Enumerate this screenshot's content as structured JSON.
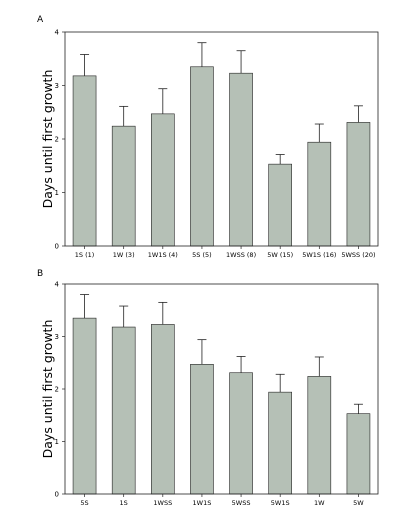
{
  "chart_data": [
    {
      "panel_label": "A",
      "type": "bar",
      "categories": [
        "1S (1)",
        "1W (3)",
        "1W1S (4)",
        "5S (5)",
        "1WSS (8)",
        "5W (15)",
        "5W1S (16)",
        "5WSS (20)"
      ],
      "values": [
        3.18,
        2.24,
        2.47,
        3.35,
        3.23,
        1.53,
        1.94,
        2.31
      ],
      "errors": [
        0.4,
        0.37,
        0.47,
        0.45,
        0.42,
        0.18,
        0.34,
        0.31
      ],
      "ylabel": "Days until first growth",
      "ylim": [
        0,
        4
      ],
      "yticks": [
        "0",
        "1",
        "2",
        "3",
        "4"
      ],
      "bar_color": "#b5c0b6",
      "grid": false
    },
    {
      "panel_label": "B",
      "type": "bar",
      "categories": [
        "5S",
        "1S",
        "1WSS",
        "1W1S",
        "5WSS",
        "5W1S",
        "1W",
        "5W"
      ],
      "values": [
        3.35,
        3.18,
        3.23,
        2.47,
        2.31,
        1.94,
        2.24,
        1.53
      ],
      "errors": [
        0.45,
        0.4,
        0.42,
        0.47,
        0.31,
        0.34,
        0.37,
        0.18
      ],
      "ylabel": "Days until first growth",
      "ylim": [
        0,
        4
      ],
      "yticks": [
        "0",
        "1",
        "2",
        "3",
        "4"
      ],
      "bar_color": "#b5c0b6",
      "grid": false
    }
  ]
}
